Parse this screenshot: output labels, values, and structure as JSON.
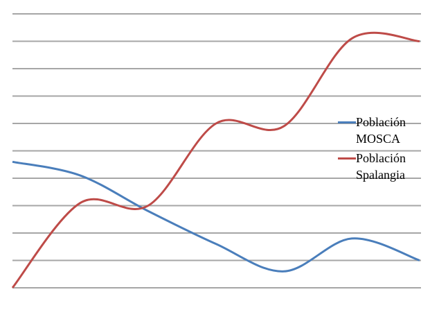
{
  "chart_data": {
    "type": "line",
    "categories": [
      null,
      null,
      null,
      null,
      null,
      null,
      null
    ],
    "series": [
      {
        "name": "Población MOSCA",
        "color": "#4a7ebb",
        "values": [
          4.6,
          4.1,
          2.8,
          1.6,
          0.6,
          1.8,
          1.0
        ]
      },
      {
        "name": "Población Spalangia",
        "color": "#be4b48",
        "values": [
          0,
          3.1,
          3.0,
          6.0,
          5.9,
          9.1,
          9.0
        ]
      }
    ],
    "ylim": [
      0,
      10
    ],
    "yticks": [
      0,
      1,
      2,
      3,
      4,
      5,
      6,
      7,
      8,
      9,
      10
    ],
    "grid": true,
    "legend": "right"
  }
}
